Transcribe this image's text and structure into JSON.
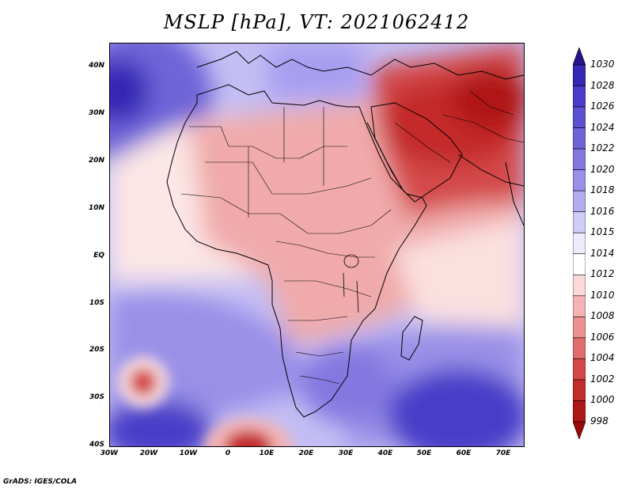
{
  "title": "MSLP [hPa], VT: 2021062412",
  "map": {
    "lat_labels": [
      "40N",
      "30N",
      "20N",
      "10N",
      "EQ",
      "10S",
      "20S",
      "30S",
      "40S"
    ],
    "lon_labels": [
      "30W",
      "20W",
      "10W",
      "0",
      "10E",
      "20E",
      "30E",
      "40E",
      "50E",
      "60E",
      "70E"
    ],
    "extent": {
      "lon": [
        -30,
        76
      ],
      "lat": [
        -40,
        45
      ]
    }
  },
  "colorbar": {
    "levels": [
      "1030",
      "1028",
      "1026",
      "1024",
      "1022",
      "1020",
      "1018",
      "1016",
      "1015",
      "1014",
      "1012",
      "1010",
      "1008",
      "1006",
      "1004",
      "1002",
      "1000",
      "998"
    ],
    "colors": [
      "#24148c",
      "#3528b4",
      "#4a3cc8",
      "#5c50d2",
      "#6e64d8",
      "#8478e0",
      "#9a90e8",
      "#b4acf0",
      "#d0ccf8",
      "#ececfc",
      "#ffffff",
      "#fcd8d8",
      "#f4b4b4",
      "#ec9090",
      "#e06c6c",
      "#d44848",
      "#c42c2c",
      "#b01818",
      "#9c0808"
    ]
  },
  "credit": "GrADS: IGES/COLA"
}
